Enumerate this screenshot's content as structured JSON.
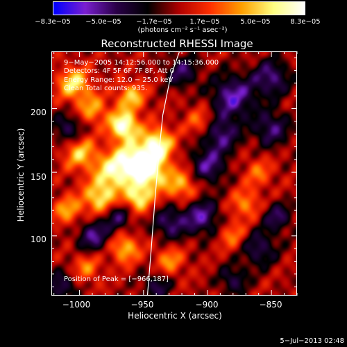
{
  "chart_data": {
    "type": "heatmap",
    "title": "Reconstructed RHESSI Image",
    "xlabel": "Heliocentric X (arcsec)",
    "ylabel": "Heliocentric Y (arcsec)",
    "xlim": [
      -1022,
      -830
    ],
    "ylim": [
      53,
      245
    ],
    "x_ticks": [
      -1000,
      -950,
      -900,
      -850
    ],
    "x_tick_labels": [
      "−1000",
      "−950",
      "−900",
      "−850"
    ],
    "y_ticks": [
      100,
      150,
      200
    ],
    "y_tick_labels": [
      "100",
      "150",
      "200"
    ],
    "colorbar": {
      "units": "(photons cm⁻² s⁻¹ asec⁻²)",
      "min": -8.3e-05,
      "max": 8.3e-05,
      "tick_labels": [
        "−8.3e−05",
        "−5.0e−05",
        "−1.7e−05",
        "1.7e−05",
        "5.0e−05",
        "8.3e−05"
      ],
      "colors": [
        "#0000ff",
        "#7a1fd0",
        "#2a0048",
        "#000000",
        "#b00000",
        "#ff3000",
        "#ffa000",
        "#ffff80",
        "#ffffff"
      ]
    },
    "annotations": [
      "9−May−2005 14:12:56.000 to 14:15:36.000",
      "Detectors: 4F 5F 6F 7F 8F, Att 0",
      "Energy Range: 12.0 − 25.0 keV",
      "Clean    Total counts: 935.",
      "Position of Peak = [−966,187]"
    ],
    "limb_curve": [
      [
        -947,
        53
      ],
      [
        -944,
        90
      ],
      [
        -941,
        130
      ],
      [
        -938,
        165
      ],
      [
        -935,
        195
      ],
      [
        -929,
        225
      ],
      [
        -922,
        245
      ]
    ],
    "peak": [
      -966,
      187
    ],
    "hot_spots": [
      {
        "x": -966,
        "y": 187,
        "v": 1.0,
        "r": 8
      },
      {
        "x": -960,
        "y": 160,
        "v": 0.8,
        "r": 10
      },
      {
        "x": -940,
        "y": 172,
        "v": 0.9,
        "r": 9
      },
      {
        "x": -945,
        "y": 150,
        "v": 0.85,
        "r": 10
      },
      {
        "x": -975,
        "y": 150,
        "v": 0.7,
        "r": 10
      },
      {
        "x": -985,
        "y": 130,
        "v": 0.7,
        "r": 9
      },
      {
        "x": -955,
        "y": 130,
        "v": 0.75,
        "r": 8
      },
      {
        "x": -920,
        "y": 140,
        "v": 0.55,
        "r": 9
      },
      {
        "x": -1000,
        "y": 165,
        "v": 0.6,
        "r": 9
      },
      {
        "x": -1005,
        "y": 220,
        "v": 0.7,
        "r": 9
      },
      {
        "x": -990,
        "y": 200,
        "v": 0.5,
        "r": 8
      },
      {
        "x": -960,
        "y": 210,
        "v": 0.6,
        "r": 8
      },
      {
        "x": -1010,
        "y": 120,
        "v": 0.5,
        "r": 8
      },
      {
        "x": -965,
        "y": 90,
        "v": 0.6,
        "r": 8
      },
      {
        "x": -930,
        "y": 80,
        "v": 0.45,
        "r": 8
      },
      {
        "x": -880,
        "y": 100,
        "v": 0.4,
        "r": 8
      },
      {
        "x": -860,
        "y": 150,
        "v": 0.35,
        "r": 8
      },
      {
        "x": -870,
        "y": 125,
        "v": 0.45,
        "r": 8
      },
      {
        "x": -905,
        "y": 190,
        "v": 0.4,
        "r": 8
      },
      {
        "x": -995,
        "y": 75,
        "v": 0.4,
        "r": 8
      },
      {
        "x": -900,
        "y": 155,
        "v": -0.6,
        "r": 10
      },
      {
        "x": -880,
        "y": 210,
        "v": -0.7,
        "r": 12
      },
      {
        "x": -890,
        "y": 180,
        "v": -0.6,
        "r": 10
      },
      {
        "x": -850,
        "y": 225,
        "v": -0.6,
        "r": 10
      },
      {
        "x": -850,
        "y": 185,
        "v": -0.55,
        "r": 10
      },
      {
        "x": -905,
        "y": 115,
        "v": -0.65,
        "r": 10
      },
      {
        "x": -930,
        "y": 110,
        "v": -0.55,
        "r": 9
      },
      {
        "x": -920,
        "y": 230,
        "v": -0.5,
        "r": 9
      },
      {
        "x": -990,
        "y": 100,
        "v": -0.6,
        "r": 9
      },
      {
        "x": -1010,
        "y": 185,
        "v": -0.5,
        "r": 8
      },
      {
        "x": -970,
        "y": 115,
        "v": -0.5,
        "r": 8
      },
      {
        "x": -860,
        "y": 90,
        "v": -0.5,
        "r": 10
      },
      {
        "x": -845,
        "y": 115,
        "v": -0.5,
        "r": 8
      },
      {
        "x": -940,
        "y": 60,
        "v": -0.45,
        "r": 8
      },
      {
        "x": -1015,
        "y": 60,
        "v": -0.5,
        "r": 8
      },
      {
        "x": -880,
        "y": 65,
        "v": -0.45,
        "r": 8
      }
    ]
  },
  "timestamp": "5−Jul−2013 02:48"
}
